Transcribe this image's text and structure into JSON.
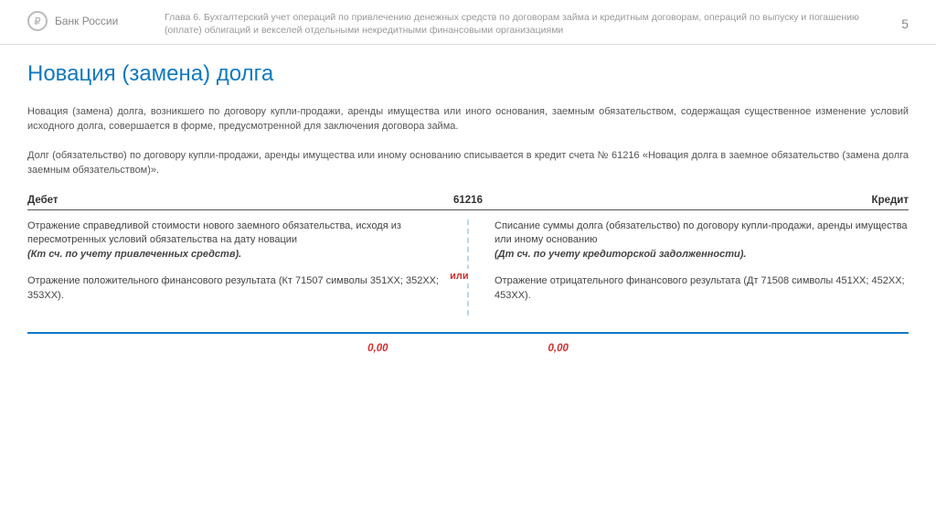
{
  "header": {
    "org": "Банк России",
    "logo_glyph": "₽",
    "chapter": "Глава 6. Бухгалтерский учет операций по привлечению денежных средств по договорам займа и кредитным договорам, операций по выпуску и погашению (оплате) облигаций и векселей отдельными некредитными финансовыми организациями",
    "page": "5"
  },
  "title": "Новация (замена) долга",
  "para1": "Новация (замена) долга, возникшего по договору купли-продажи, аренды имущества или иного основания, заемным обязательством, содержащая существенное изменение условий исходного долга, совершается в форме, предусмотренной для заключения договора займа.",
  "para2": "Долг (обязательство) по договору купли-продажи, аренды имущества или иному основанию списывается в кредит счета № 61216 «Новация долга в заемное обязательство (замена долга заемным обязательством)».",
  "table": {
    "head_left": "Дебет",
    "head_center": "61216",
    "head_right": "Кредит",
    "left1_text": "Отражение справедливой стоимости нового заемного обязательства, исходя из пересмотренных условий обязательства на дату новации",
    "left1_italic": "(Кт сч. по учету привлеченных средств).",
    "left2": "Отражение положительного финансового результата (Кт 71507 символы 351XX; 352XX; 353XX).",
    "right1_text": "Списание суммы долга (обязательство) по договору купли-продажи, аренды имущества или иному основанию",
    "right1_italic": "(Дт сч. по учету кредиторской задолженности).",
    "right2": "Отражение отрицательного финансового результата (Дт 71508 символы 451XX; 452XX; 453XX).",
    "or": "или",
    "zero_left": "0,00",
    "zero_right": "0,00"
  },
  "colors": {
    "accent": "#1179c0",
    "warn": "#d03030",
    "muted": "#9a9a9a",
    "text": "#444444",
    "divider": "#bcd6e8"
  }
}
